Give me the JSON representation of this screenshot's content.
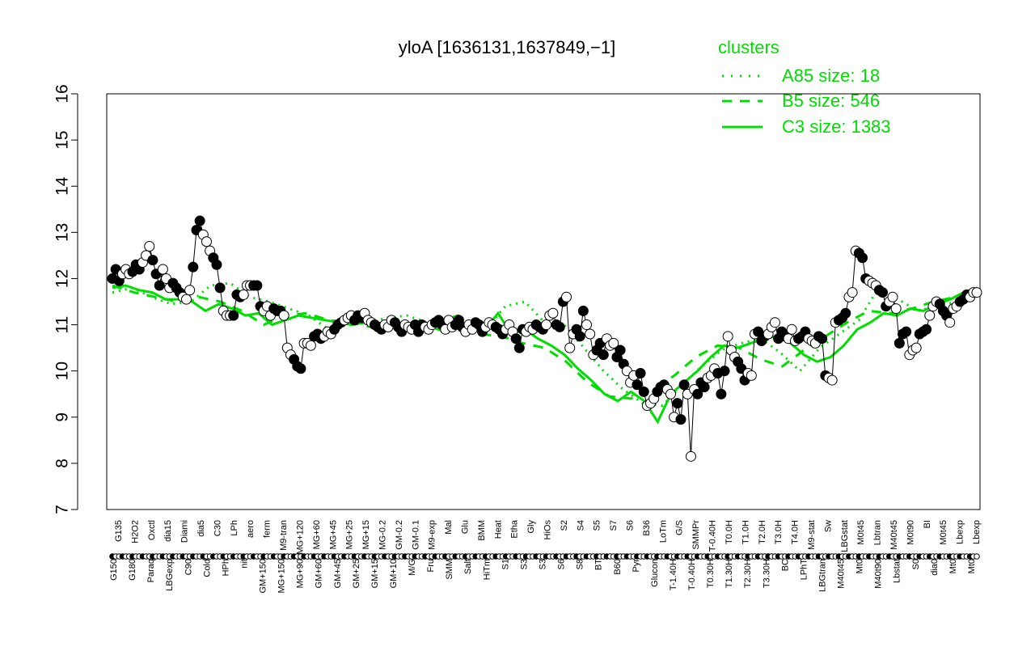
{
  "chart_data": {
    "type": "line",
    "title": "yloA [1636131,1637849,−1]",
    "xlabel": "",
    "ylabel": "",
    "ylim": [
      7,
      16
    ],
    "yticks": [
      7,
      8,
      9,
      10,
      11,
      12,
      13,
      14,
      15,
      16
    ],
    "legend": {
      "title": "clusters",
      "placement": "top-right",
      "entries": [
        {
          "label": "A85 size: 18",
          "style": "dotted"
        },
        {
          "label": "B5 size: 546",
          "style": "dashed"
        },
        {
          "label": "C3 size: 1383",
          "style": "solid"
        }
      ]
    },
    "x_labels_upper": [
      "G135",
      "H2O2",
      "Oxctl",
      "dia15",
      "Diami",
      "dia5",
      "C30",
      "LPh",
      "aero",
      "ferm",
      "M9-tran",
      "MG+120",
      "MG+60",
      "MG+45",
      "MG+25",
      "MG+15",
      "MG-0.2",
      "GM-0.2",
      "GM-0.1",
      "M9-exp",
      "Mal",
      "Glu",
      "BMM",
      "Heat",
      "Etha",
      "Gly",
      "HiOs",
      "S2",
      "S4",
      "S5",
      "S7",
      "S6",
      "B36",
      "LoTm",
      "G/S",
      "SMMPr",
      "T-0.40H",
      "T0.0H",
      "T1.0H",
      "T2.0H",
      "T3.0H",
      "T4.0H",
      "M9-stat",
      "Sw",
      "LBGstat",
      "M0t45",
      "Lbtran",
      "M40t45",
      "M0t90",
      "BI",
      "M0t45",
      "Lbexp",
      "Lbexp"
    ],
    "x_labels_lower": [
      "G150",
      "G180",
      "Paraq",
      "LBGexp",
      "C90",
      "Cold",
      "HPh",
      "nit",
      "GM+150",
      "MG+150",
      "MG+90",
      "GM+60",
      "GM+45",
      "GM+25",
      "GM+15",
      "GM+10",
      "M/G",
      "Fru",
      "SMM",
      "Salt",
      "HiTm",
      "S1",
      "S3",
      "S3",
      "S6",
      "S8",
      "BT",
      "B60",
      "Pyr",
      "Glucon",
      "T-1.40H",
      "T-0.40H",
      "T0.30H",
      "T1.30H",
      "T2.30H",
      "T3.30H",
      "BC",
      "LPhT",
      "LBGtran",
      "M40t45",
      "Mt0",
      "M40t90",
      "Lbstat",
      "S0",
      "dia0",
      "Mt0",
      "Mt0"
    ],
    "series": [
      {
        "marker": "points",
        "values": [
          12.0,
          12.2,
          11.95,
          12.1,
          12.2,
          12.1,
          12.15,
          12.3,
          12.2,
          12.35,
          12.5,
          12.7,
          12.4,
          12.1,
          11.85,
          12.2,
          12.0,
          11.8,
          11.9,
          11.8,
          11.7,
          11.6,
          11.55,
          11.75,
          12.25,
          13.05,
          13.25,
          12.95,
          12.8,
          12.6,
          12.45,
          12.3,
          11.8,
          11.3,
          11.2,
          11.2,
          11.2,
          11.65,
          11.6,
          11.65,
          11.85,
          11.85,
          11.85,
          11.85,
          11.4,
          11.3,
          11.4,
          11.2,
          11.35,
          11.3,
          11.3,
          11.2,
          10.5,
          10.35,
          10.25,
          10.1,
          10.05,
          10.6,
          10.6,
          10.55,
          10.75,
          10.8,
          10.7,
          10.75,
          10.85,
          10.8,
          10.9,
          11.0,
          11.05,
          11.1,
          11.15,
          11.2,
          11.1,
          11.2,
          11.15,
          11.25,
          11.1,
          11.05,
          11.0,
          10.95,
          10.9,
          11.0,
          10.95,
          11.1,
          11.05,
          10.95,
          10.85,
          11.0,
          10.95,
          10.9,
          11.0,
          10.85,
          11.0,
          10.95,
          10.9,
          11.0,
          11.05,
          11.1,
          11.0,
          10.9,
          11.1,
          10.95,
          11.0,
          11.1,
          10.95,
          10.85,
          11.0,
          10.9,
          11.05,
          11.0,
          10.85,
          10.95,
          11.05,
          11.0,
          10.95,
          10.9,
          10.8,
          10.9,
          11.0,
          10.85,
          10.7,
          10.5,
          10.9,
          10.85,
          10.95,
          10.9,
          11.0,
          10.95,
          10.9,
          11.0,
          11.2,
          11.25,
          11.0,
          10.95,
          11.5,
          11.6,
          10.5,
          10.8,
          10.9,
          10.75,
          11.3,
          11.0,
          10.8,
          10.35,
          10.45,
          10.6,
          10.35,
          10.7,
          10.55,
          10.6,
          10.3,
          10.45,
          10.15,
          10.0,
          9.75,
          9.9,
          9.7,
          9.95,
          9.55,
          9.25,
          9.3,
          9.4,
          9.55,
          9.65,
          9.7,
          9.6,
          9.5,
          9.0,
          9.3,
          8.95,
          9.7,
          9.5,
          8.15,
          9.6,
          9.5,
          9.75,
          9.65,
          9.85,
          9.9,
          10.05,
          9.95,
          9.5,
          10.0,
          10.75,
          10.45,
          10.3,
          10.2,
          10.05,
          9.8,
          9.95,
          9.9,
          10.8,
          10.85,
          10.65,
          10.75,
          10.8,
          10.95,
          11.05,
          10.7,
          10.85,
          10.75,
          10.7,
          10.9,
          10.65,
          10.7,
          10.75,
          10.85,
          10.7,
          10.65,
          10.6,
          10.75,
          10.7,
          9.9,
          9.85,
          9.8,
          11.05,
          11.1,
          11.15,
          11.25,
          11.6,
          11.7,
          12.6,
          12.55,
          12.45,
          12.0,
          11.95,
          11.9,
          11.85,
          11.75,
          11.7,
          11.4,
          11.5,
          11.6,
          11.35,
          10.6,
          10.8,
          10.85,
          10.35,
          10.45,
          10.5,
          10.8,
          10.85,
          10.9,
          11.2,
          11.4,
          11.5,
          11.45,
          11.3,
          11.2,
          11.05,
          11.35,
          11.4,
          11.5,
          11.55,
          11.65,
          11.6,
          11.7,
          11.7
        ]
      },
      {
        "marker": "A85-dotted",
        "values": [
          11.7,
          11.8,
          11.6,
          11.45,
          11.5,
          11.85,
          11.9,
          11.6,
          11.5,
          11.35,
          11.2,
          10.9,
          11.0,
          11.05,
          11.15,
          11.2,
          11.05,
          10.95,
          11.0,
          10.9,
          11.4,
          11.5,
          11.05,
          11.0,
          10.5,
          10.0,
          9.6,
          9.3,
          9.25,
          9.7,
          10.1,
          10.45,
          10.6,
          10.7,
          10.4,
          10.0,
          10.5,
          10.8,
          11.1,
          11.8,
          11.55,
          11.3,
          11.4,
          11.5,
          11.7
        ]
      },
      {
        "marker": "B5-dashed",
        "values": [
          11.85,
          11.7,
          11.6,
          11.5,
          11.6,
          11.5,
          11.3,
          11.0,
          11.2,
          11.25,
          11.1,
          11.05,
          10.95,
          11.1,
          11.0,
          11.05,
          11.2,
          10.8,
          10.75,
          10.6,
          10.5,
          10.2,
          9.75,
          9.45,
          9.4,
          9.6,
          9.9,
          10.3,
          10.55,
          10.5,
          10.25,
          10.1,
          10.45,
          10.75,
          11.05,
          11.3,
          11.25,
          11.35,
          11.5,
          11.6,
          11.75
        ]
      },
      {
        "marker": "C3-solid",
        "values": [
          11.8,
          11.85,
          11.75,
          11.7,
          11.55,
          11.55,
          11.5,
          11.3,
          11.45,
          11.35,
          11.2,
          11.25,
          11.0,
          11.1,
          11.2,
          11.15,
          11.1,
          11.05,
          11.0,
          11.05,
          11.0,
          10.95,
          11.0,
          10.85,
          10.95,
          10.85,
          11.0,
          11.0,
          10.9,
          11.25,
          10.8,
          10.9,
          10.7,
          10.55,
          10.35,
          10.05,
          9.8,
          9.5,
          9.35,
          9.55,
          9.35,
          8.9,
          9.5,
          9.75,
          10.0,
          10.3,
          10.55,
          10.5,
          10.6,
          10.7,
          10.75,
          10.6,
          10.35,
          10.2,
          10.3,
          10.55,
          10.9,
          11.05,
          11.25,
          11.2,
          11.35,
          11.3,
          11.45,
          11.55,
          11.7,
          11.8
        ]
      }
    ]
  },
  "colors": {
    "points_line": "#000000",
    "fill_dark": "#000000",
    "fill_light": "#ffffff",
    "cluster": "#00dd00"
  }
}
